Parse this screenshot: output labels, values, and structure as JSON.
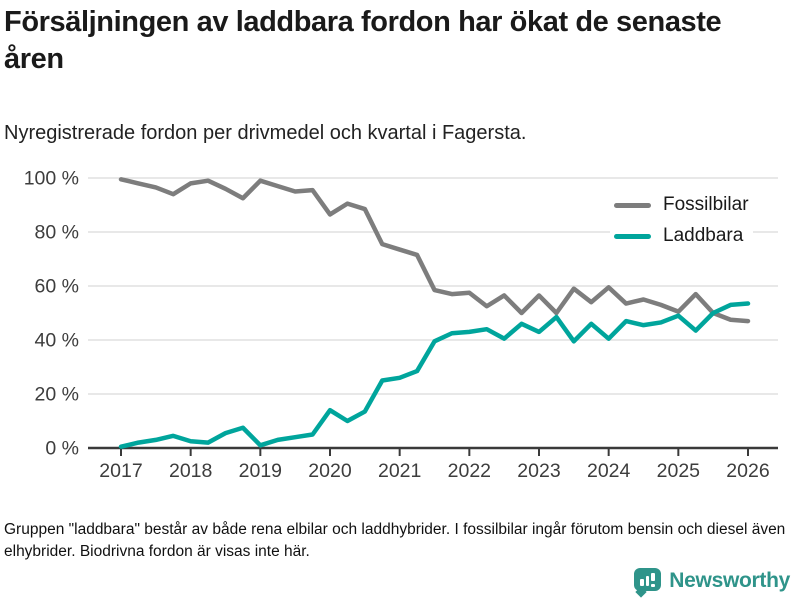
{
  "header": {
    "title": "Försäljningen av laddbara fordon har ökat de senaste åren",
    "subtitle": "Nyregistrerade fordon per drivmedel och kvartal i Fagersta."
  },
  "chart_data": {
    "type": "line",
    "title": "Försäljningen av laddbara fordon har ökat de senaste åren",
    "subtitle": "Nyregistrerade fordon per drivmedel och kvartal i Fagersta.",
    "categories": [
      "2017 Q1",
      "2017 Q2",
      "2017 Q3",
      "2017 Q4",
      "2018 Q1",
      "2018 Q2",
      "2018 Q3",
      "2018 Q4",
      "2019 Q1",
      "2019 Q2",
      "2019 Q3",
      "2019 Q4",
      "2020 Q1",
      "2020 Q2",
      "2020 Q3",
      "2020 Q4",
      "2021 Q1",
      "2021 Q2",
      "2021 Q3",
      "2021 Q4",
      "2022 Q1",
      "2022 Q2",
      "2022 Q3",
      "2022 Q4",
      "2023 Q1",
      "2023 Q2",
      "2023 Q3",
      "2023 Q4",
      "2024 Q1",
      "2024 Q2",
      "2024 Q3",
      "2024 Q4",
      "2025 Q1",
      "2025 Q2",
      "2025 Q3",
      "2025 Q4",
      "2026 Q1"
    ],
    "series": [
      {
        "name": "Fossilbilar",
        "color": "#7D7D7D",
        "values": [
          99.5,
          98,
          96.5,
          94,
          98,
          99,
          96,
          92.5,
          99,
          97,
          95,
          95.5,
          86.5,
          90.5,
          88.5,
          75.5,
          73.5,
          71.5,
          58.5,
          57,
          57.5,
          52.5,
          56.5,
          50,
          56.5,
          50,
          59,
          54,
          59.5,
          53.5,
          55,
          53,
          50.5,
          57,
          50,
          47.5,
          47
        ]
      },
      {
        "name": "Laddbara",
        "color": "#00A59C",
        "values": [
          0.5,
          2,
          3,
          4.5,
          2.5,
          2,
          5.5,
          7.5,
          1,
          3,
          4,
          5,
          14,
          10,
          13.5,
          25,
          26,
          28.5,
          39.5,
          42.5,
          43,
          44,
          40.5,
          46,
          43,
          48.5,
          39.5,
          46,
          40.5,
          47,
          45.5,
          46.5,
          49,
          43.5,
          50,
          53,
          53.5
        ]
      }
    ],
    "x_tick_labels": [
      "2017",
      "2018",
      "2019",
      "2020",
      "2021",
      "2022",
      "2023",
      "2024",
      "2025",
      "2026"
    ],
    "y_tick_labels": [
      "0 %",
      "20 %",
      "40 %",
      "60 %",
      "80 %",
      "100 %"
    ],
    "y_tick_values": [
      0,
      20,
      40,
      60,
      80,
      100
    ],
    "ylim": [
      0,
      100
    ],
    "unit": "%",
    "grid": "horizontal",
    "legend_position": "top-right",
    "colors": {
      "gridline": "#D9D9D9",
      "axis": "#3A3A3A",
      "tick_label": "#3D3D3D"
    }
  },
  "footnote": "Gruppen \"laddbara\" består av både rena elbilar och laddhybrider. I fossilbilar ingår förutom bensin och diesel även elhybrider. Biodrivna fordon är visas inte här.",
  "branding": {
    "logo_text": "Newsworthy",
    "logo_color": "#2F948A"
  }
}
